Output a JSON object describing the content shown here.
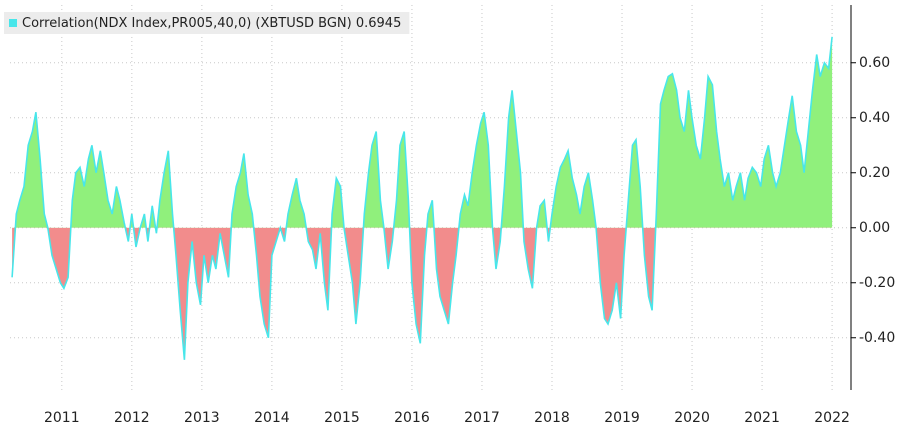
{
  "chart_data": {
    "type": "area",
    "series": [
      {
        "name": "Correlation(NDX Index,PR005,40,0) (XBTUSD BGN) 0.6945",
        "color": "#48e6ea",
        "positive_color": "#90f07c",
        "negative_color": "#f28c8c",
        "x": [
          2010.29,
          2010.35,
          2010.4,
          2010.46,
          2010.52,
          2010.58,
          2010.63,
          2010.69,
          2010.75,
          2010.8,
          2010.86,
          2010.92,
          2010.98,
          2011.03,
          2011.09,
          2011.15,
          2011.2,
          2011.26,
          2011.32,
          2011.38,
          2011.43,
          2011.49,
          2011.55,
          2011.6,
          2011.66,
          2011.72,
          2011.78,
          2011.83,
          2011.89,
          2011.95,
          2012.0,
          2012.06,
          2012.12,
          2012.18,
          2012.23,
          2012.29,
          2012.35,
          2012.4,
          2012.46,
          2012.52,
          2012.58,
          2012.63,
          2012.69,
          2012.75,
          2012.8,
          2012.86,
          2012.92,
          2012.98,
          2013.03,
          2013.09,
          2013.15,
          2013.2,
          2013.26,
          2013.32,
          2013.38,
          2013.43,
          2013.49,
          2013.55,
          2013.6,
          2013.66,
          2013.72,
          2013.78,
          2013.83,
          2013.89,
          2013.95,
          2014.0,
          2014.06,
          2014.12,
          2014.18,
          2014.23,
          2014.29,
          2014.35,
          2014.4,
          2014.46,
          2014.52,
          2014.58,
          2014.63,
          2014.69,
          2014.75,
          2014.8,
          2014.86,
          2014.92,
          2014.98,
          2015.03,
          2015.09,
          2015.15,
          2015.2,
          2015.26,
          2015.32,
          2015.38,
          2015.43,
          2015.49,
          2015.55,
          2015.6,
          2015.66,
          2015.72,
          2015.78,
          2015.83,
          2015.89,
          2015.95,
          2016.0,
          2016.06,
          2016.12,
          2016.18,
          2016.23,
          2016.29,
          2016.35,
          2016.4,
          2016.46,
          2016.52,
          2016.58,
          2016.63,
          2016.69,
          2016.75,
          2016.8,
          2016.86,
          2016.92,
          2016.98,
          2017.03,
          2017.09,
          2017.15,
          2017.2,
          2017.26,
          2017.32,
          2017.38,
          2017.43,
          2017.49,
          2017.55,
          2017.6,
          2017.66,
          2017.72,
          2017.78,
          2017.83,
          2017.89,
          2017.95,
          2018.0,
          2018.06,
          2018.12,
          2018.18,
          2018.23,
          2018.29,
          2018.35,
          2018.4,
          2018.46,
          2018.52,
          2018.58,
          2018.63,
          2018.69,
          2018.75,
          2018.8,
          2018.86,
          2018.92,
          2018.98,
          2019.03,
          2019.09,
          2019.15,
          2019.2,
          2019.26,
          2019.32,
          2019.38,
          2019.43,
          2019.49,
          2019.55,
          2019.6,
          2019.66,
          2019.72,
          2019.78,
          2019.83,
          2019.89,
          2019.95,
          2020.0,
          2020.06,
          2020.12,
          2020.18,
          2020.23,
          2020.29,
          2020.35,
          2020.4,
          2020.46,
          2020.52,
          2020.58,
          2020.63,
          2020.69,
          2020.75,
          2020.8,
          2020.86,
          2020.92,
          2020.98,
          2021.03,
          2021.09,
          2021.15,
          2021.2,
          2021.26,
          2021.32,
          2021.38,
          2021.43,
          2021.49,
          2021.55,
          2021.6,
          2021.66,
          2021.72,
          2021.78,
          2021.83,
          2021.89,
          2021.95,
          2022.0
        ],
        "values": [
          -0.18,
          0.05,
          0.1,
          0.15,
          0.3,
          0.35,
          0.42,
          0.25,
          0.05,
          0.0,
          -0.1,
          -0.15,
          -0.2,
          -0.22,
          -0.18,
          0.1,
          0.2,
          0.22,
          0.15,
          0.25,
          0.3,
          0.2,
          0.28,
          0.2,
          0.1,
          0.05,
          0.15,
          0.1,
          0.02,
          -0.05,
          0.05,
          -0.07,
          0.0,
          0.05,
          -0.05,
          0.08,
          -0.02,
          0.1,
          0.2,
          0.28,
          0.05,
          -0.1,
          -0.3,
          -0.48,
          -0.2,
          -0.05,
          -0.2,
          -0.28,
          -0.1,
          -0.2,
          -0.1,
          -0.15,
          -0.02,
          -0.1,
          -0.18,
          0.05,
          0.15,
          0.2,
          0.27,
          0.12,
          0.05,
          -0.1,
          -0.25,
          -0.35,
          -0.4,
          -0.1,
          -0.05,
          0.0,
          -0.05,
          0.05,
          0.12,
          0.18,
          0.1,
          0.05,
          -0.05,
          -0.08,
          -0.15,
          -0.02,
          -0.2,
          -0.3,
          0.05,
          0.18,
          0.15,
          0.0,
          -0.1,
          -0.2,
          -0.35,
          -0.2,
          0.05,
          0.2,
          0.3,
          0.35,
          0.1,
          0.0,
          -0.15,
          -0.05,
          0.1,
          0.3,
          0.35,
          0.1,
          -0.2,
          -0.35,
          -0.42,
          -0.1,
          0.05,
          0.1,
          -0.15,
          -0.25,
          -0.3,
          -0.35,
          -0.2,
          -0.1,
          0.05,
          0.12,
          0.08,
          0.2,
          0.3,
          0.38,
          0.42,
          0.3,
          0.0,
          -0.15,
          -0.05,
          0.15,
          0.4,
          0.5,
          0.35,
          0.2,
          -0.05,
          -0.15,
          -0.22,
          0.0,
          0.08,
          0.1,
          -0.05,
          0.05,
          0.15,
          0.22,
          0.25,
          0.28,
          0.18,
          0.12,
          0.05,
          0.15,
          0.2,
          0.1,
          0.0,
          -0.2,
          -0.33,
          -0.35,
          -0.3,
          -0.2,
          -0.33,
          -0.1,
          0.1,
          0.3,
          0.32,
          0.15,
          -0.1,
          -0.25,
          -0.3,
          0.05,
          0.45,
          0.5,
          0.55,
          0.56,
          0.5,
          0.4,
          0.35,
          0.5,
          0.4,
          0.3,
          0.25,
          0.4,
          0.55,
          0.52,
          0.35,
          0.25,
          0.15,
          0.2,
          0.1,
          0.15,
          0.2,
          0.1,
          0.18,
          0.22,
          0.2,
          0.15,
          0.25,
          0.3,
          0.2,
          0.15,
          0.2,
          0.3,
          0.4,
          0.48,
          0.35,
          0.3,
          0.2,
          0.35,
          0.5,
          0.63,
          0.55,
          0.6,
          0.58,
          0.6945
        ]
      }
    ],
    "xlim": [
      2010.26,
      2022.27
    ],
    "xticks": [
      2011,
      2012,
      2013,
      2014,
      2015,
      2016,
      2017,
      2018,
      2019,
      2020,
      2021,
      2022
    ],
    "ylim": [
      -0.59,
      0.81
    ],
    "yticks": [
      {
        "value": -0.4,
        "label": "-0.40"
      },
      {
        "value": -0.2,
        "label": "-0.20"
      },
      {
        "value": 0,
        "label": "0.00"
      },
      {
        "value": 0.2,
        "label": "0.20"
      },
      {
        "value": 0.4,
        "label": "0.40"
      },
      {
        "value": 0.6,
        "label": "0.60"
      }
    ],
    "grid": true,
    "legend": "top-left"
  }
}
